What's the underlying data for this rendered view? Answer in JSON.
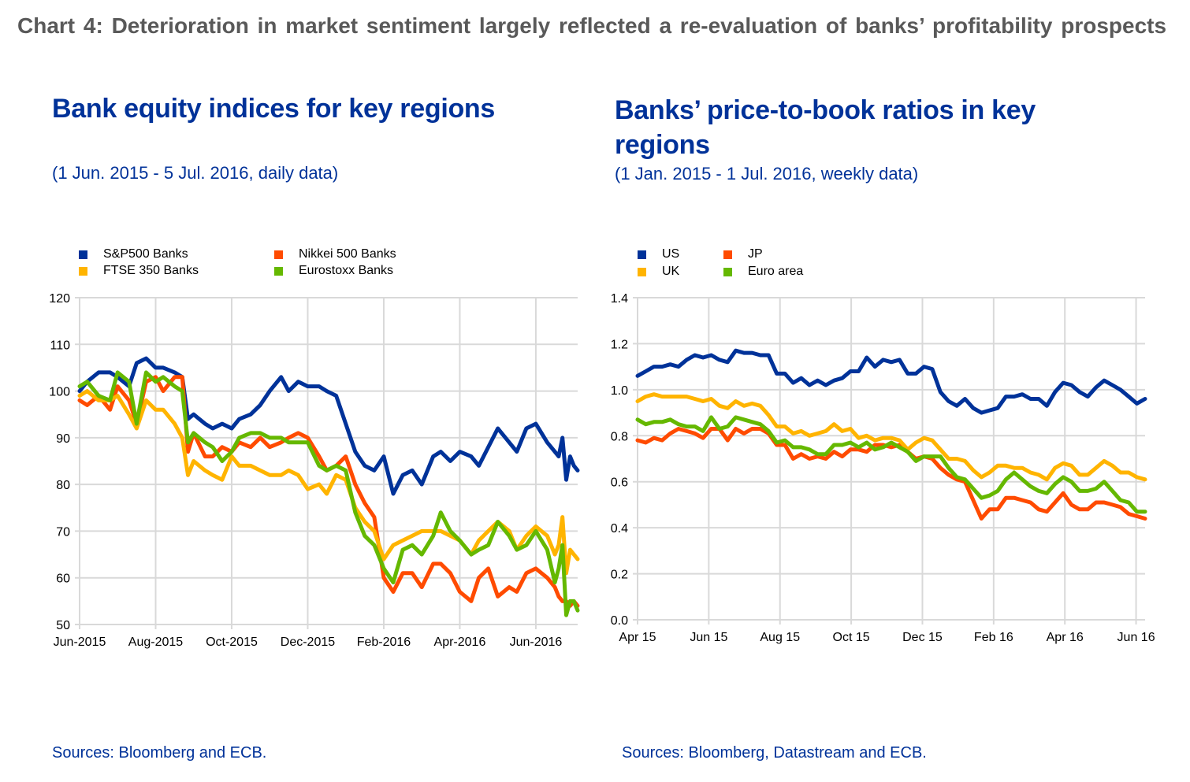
{
  "header": {
    "title": "Chart 4: Deterioration in market sentiment largely reflected a re-evaluation of banks’ profitability prospects"
  },
  "colors": {
    "title_grey": "#595959",
    "ecb_blue": "#003299",
    "us": "#003299",
    "jp": "#FF4B00",
    "uk": "#FFB400",
    "euro": "#65B800",
    "grid": "#D9D9D9"
  },
  "left_panel": {
    "title": "Bank equity indices for key regions",
    "subtitle": "(1 Jun. 2015 - 5 Jul. 2016, daily data)",
    "source": "Sources: Bloomberg and ECB."
  },
  "right_panel": {
    "title": "Banks’ price-to-book ratios in key regions",
    "subtitle": "(1 Jan. 2015 - 1 Jul. 2016, weekly data)",
    "source": "Sources: Bloomberg, Datastream and ECB."
  },
  "chart_data": [
    {
      "type": "line",
      "title": "Bank equity indices for key regions",
      "xlabel": "",
      "ylabel": "",
      "ylim": [
        50,
        120
      ],
      "yticks": [
        50,
        60,
        70,
        80,
        90,
        100,
        110,
        120
      ],
      "xlim_months": [
        0,
        13.1
      ],
      "x_tick_labels": [
        "Jun-2015",
        "Aug-2015",
        "Oct-2015",
        "Dec-2015",
        "Feb-2016",
        "Apr-2016",
        "Jun-2016"
      ],
      "x_tick_positions_months": [
        0,
        2,
        4,
        6,
        8,
        10,
        12
      ],
      "grid": true,
      "legend_position": "top",
      "x_unit": "months since 1 Jun 2015",
      "x": [
        0,
        0.2,
        0.5,
        0.8,
        1.0,
        1.3,
        1.5,
        1.75,
        2.0,
        2.2,
        2.5,
        2.7,
        2.85,
        3.0,
        3.3,
        3.5,
        3.75,
        4.0,
        4.2,
        4.5,
        4.75,
        5.0,
        5.3,
        5.5,
        5.75,
        6.0,
        6.3,
        6.5,
        6.75,
        7.0,
        7.25,
        7.5,
        7.75,
        8.0,
        8.25,
        8.5,
        8.75,
        9.0,
        9.3,
        9.5,
        9.75,
        10.0,
        10.3,
        10.5,
        10.75,
        11.0,
        11.3,
        11.5,
        11.75,
        12.0,
        12.3,
        12.5,
        12.6,
        12.7,
        12.8,
        12.9,
        13.0,
        13.1
      ],
      "series": [
        {
          "name": "S&P500 Banks",
          "color": "#003299",
          "values": [
            100,
            102,
            104,
            104,
            103,
            101,
            106,
            107,
            105,
            105,
            104,
            103,
            94,
            95,
            93,
            92,
            93,
            92,
            94,
            95,
            97,
            100,
            103,
            100,
            102,
            101,
            101,
            100,
            99,
            93,
            87,
            84,
            83,
            86,
            78,
            82,
            83,
            80,
            86,
            87,
            85,
            87,
            86,
            84,
            88,
            92,
            89,
            87,
            92,
            93,
            89,
            87,
            86,
            90,
            81,
            86,
            84,
            83
          ]
        },
        {
          "name": "Nikkei 500 Banks",
          "color": "#FF4B00",
          "values": [
            98,
            97,
            99,
            96,
            101,
            98,
            93,
            102,
            103,
            100,
            103,
            103,
            87,
            91,
            86,
            86,
            88,
            87,
            89,
            88,
            90,
            88,
            89,
            90,
            91,
            90,
            86,
            83,
            84,
            86,
            80,
            76,
            73,
            60,
            57,
            61,
            61,
            58,
            63,
            63,
            61,
            57,
            55,
            60,
            62,
            56,
            58,
            57,
            61,
            62,
            60,
            58,
            56,
            55,
            55,
            54,
            55,
            54
          ]
        },
        {
          "name": "FTSE 350 Banks",
          "color": "#FFB400",
          "values": [
            99,
            100,
            98,
            98,
            99,
            95,
            92,
            98,
            96,
            96,
            93,
            90,
            82,
            85,
            83,
            82,
            81,
            86,
            84,
            84,
            83,
            82,
            82,
            83,
            82,
            79,
            80,
            78,
            82,
            81,
            75,
            72,
            70,
            64,
            67,
            68,
            69,
            70,
            70,
            70,
            69,
            68,
            65,
            68,
            70,
            72,
            70,
            66,
            69,
            71,
            69,
            65,
            67,
            73,
            61,
            66,
            65,
            64
          ]
        },
        {
          "name": "Eurostoxx Banks",
          "color": "#65B800",
          "values": [
            101,
            102,
            99,
            98,
            104,
            102,
            93,
            104,
            102,
            103,
            101,
            100,
            89,
            91,
            89,
            88,
            85,
            87,
            90,
            91,
            91,
            90,
            90,
            89,
            89,
            89,
            84,
            83,
            84,
            83,
            74,
            69,
            67,
            62,
            59,
            66,
            67,
            65,
            69,
            74,
            70,
            68,
            65,
            66,
            67,
            72,
            69,
            66,
            67,
            70,
            66,
            59,
            62,
            67,
            52,
            55,
            55,
            53
          ]
        }
      ]
    },
    {
      "type": "line",
      "title": "Banks’ price-to-book ratios in key regions",
      "xlabel": "",
      "ylabel": "",
      "ylim": [
        0.0,
        1.4
      ],
      "yticks": [
        0.0,
        0.2,
        0.4,
        0.6,
        0.8,
        1.0,
        1.2,
        1.4
      ],
      "x_tick_labels": [
        "Apr 15",
        "Jun 15",
        "Aug 15",
        "Oct 15",
        "Dec 15",
        "Feb 16",
        "Apr 16",
        "Jun 16"
      ],
      "x_tick_positions_weeks": [
        0,
        8.7,
        17.4,
        26.1,
        34.8,
        43.5,
        52.2,
        60.9
      ],
      "xlim_weeks": [
        0,
        62
      ],
      "grid": true,
      "legend_position": "top",
      "x_unit": "weeks since start of Apr 2015",
      "series": [
        {
          "name": "US",
          "color": "#003299",
          "values": [
            1.06,
            1.08,
            1.1,
            1.1,
            1.11,
            1.1,
            1.13,
            1.15,
            1.14,
            1.15,
            1.13,
            1.12,
            1.17,
            1.16,
            1.16,
            1.15,
            1.15,
            1.07,
            1.07,
            1.03,
            1.05,
            1.02,
            1.04,
            1.02,
            1.04,
            1.05,
            1.08,
            1.08,
            1.14,
            1.1,
            1.13,
            1.12,
            1.13,
            1.07,
            1.07,
            1.1,
            1.09,
            0.99,
            0.95,
            0.93,
            0.96,
            0.92,
            0.9,
            0.91,
            0.92,
            0.97,
            0.97,
            0.98,
            0.96,
            0.96,
            0.93,
            0.99,
            1.03,
            1.02,
            0.99,
            0.97,
            1.01,
            1.04,
            1.02,
            1.0,
            0.97,
            0.94,
            0.96
          ]
        },
        {
          "name": "JP",
          "color": "#FF4B00",
          "values": [
            0.78,
            0.77,
            0.79,
            0.78,
            0.81,
            0.83,
            0.82,
            0.81,
            0.79,
            0.83,
            0.83,
            0.78,
            0.83,
            0.81,
            0.83,
            0.83,
            0.81,
            0.76,
            0.76,
            0.7,
            0.72,
            0.7,
            0.71,
            0.7,
            0.73,
            0.71,
            0.74,
            0.74,
            0.73,
            0.76,
            0.76,
            0.75,
            0.76,
            0.73,
            0.7,
            0.71,
            0.7,
            0.66,
            0.63,
            0.61,
            0.6,
            0.52,
            0.44,
            0.48,
            0.48,
            0.53,
            0.53,
            0.52,
            0.51,
            0.48,
            0.47,
            0.51,
            0.55,
            0.5,
            0.48,
            0.48,
            0.51,
            0.51,
            0.5,
            0.49,
            0.46,
            0.45,
            0.44
          ]
        },
        {
          "name": "UK",
          "color": "#FFB400",
          "values": [
            0.95,
            0.97,
            0.98,
            0.97,
            0.97,
            0.97,
            0.97,
            0.96,
            0.95,
            0.96,
            0.93,
            0.92,
            0.95,
            0.93,
            0.94,
            0.93,
            0.89,
            0.84,
            0.84,
            0.81,
            0.82,
            0.8,
            0.81,
            0.82,
            0.85,
            0.82,
            0.83,
            0.79,
            0.8,
            0.78,
            0.79,
            0.79,
            0.78,
            0.74,
            0.77,
            0.79,
            0.78,
            0.74,
            0.7,
            0.7,
            0.69,
            0.65,
            0.62,
            0.64,
            0.67,
            0.67,
            0.66,
            0.66,
            0.64,
            0.63,
            0.61,
            0.66,
            0.68,
            0.67,
            0.63,
            0.63,
            0.66,
            0.69,
            0.67,
            0.64,
            0.64,
            0.62,
            0.61
          ]
        },
        {
          "name": "Euro area",
          "color": "#65B800",
          "values": [
            0.87,
            0.85,
            0.86,
            0.86,
            0.87,
            0.85,
            0.84,
            0.84,
            0.82,
            0.88,
            0.83,
            0.84,
            0.88,
            0.87,
            0.86,
            0.85,
            0.82,
            0.77,
            0.78,
            0.75,
            0.75,
            0.74,
            0.72,
            0.72,
            0.76,
            0.76,
            0.77,
            0.75,
            0.77,
            0.74,
            0.75,
            0.77,
            0.75,
            0.73,
            0.69,
            0.71,
            0.71,
            0.71,
            0.66,
            0.62,
            0.61,
            0.57,
            0.53,
            0.54,
            0.56,
            0.61,
            0.64,
            0.61,
            0.58,
            0.56,
            0.55,
            0.59,
            0.62,
            0.6,
            0.56,
            0.56,
            0.57,
            0.6,
            0.56,
            0.52,
            0.51,
            0.47,
            0.47
          ]
        }
      ]
    }
  ]
}
